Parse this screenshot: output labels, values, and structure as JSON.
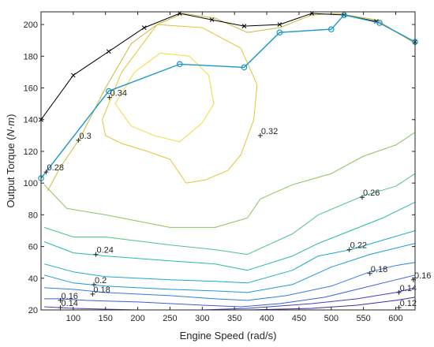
{
  "chart_data": {
    "type": "line",
    "title": "",
    "xlabel": "Engine Speed (rad/s)",
    "ylabel": "Output Torque (N·m)",
    "ylabel_parts": {
      "before": "Output Torque (",
      "unit": "N·m",
      "after": ")"
    },
    "xlim": [
      50,
      630
    ],
    "ylim": [
      20,
      208
    ],
    "grid": false,
    "xticks": [
      {
        "v": 100,
        "label": "100"
      },
      {
        "v": 150,
        "label": "150"
      },
      {
        "v": 200,
        "label": "200"
      },
      {
        "v": 250,
        "label": "250"
      },
      {
        "v": 300,
        "label": "300"
      },
      {
        "v": 350,
        "label": "350"
      },
      {
        "v": 400,
        "label": "400"
      },
      {
        "v": 450,
        "label": "450"
      },
      {
        "v": 500,
        "label": "500"
      },
      {
        "v": 550,
        "label": "550"
      },
      {
        "v": 600,
        "label": "600"
      }
    ],
    "yticks": [
      {
        "v": 20,
        "label": "20"
      },
      {
        "v": 40,
        "label": "40"
      },
      {
        "v": 60,
        "label": "60"
      },
      {
        "v": 80,
        "label": "80"
      },
      {
        "v": 100,
        "label": "100"
      },
      {
        "v": 120,
        "label": "120"
      },
      {
        "v": 140,
        "label": "140"
      },
      {
        "v": 160,
        "label": "160"
      },
      {
        "v": 180,
        "label": "180"
      },
      {
        "v": 200,
        "label": "200"
      }
    ],
    "contours": [
      {
        "level": 0.12,
        "color": "#3d2ba8",
        "points": [
          [
            370,
            20
          ],
          [
            470,
            21
          ],
          [
            540,
            23
          ],
          [
            600,
            26
          ],
          [
            630,
            28
          ]
        ]
      },
      {
        "level": 0.14,
        "color": "#4440c2",
        "points": [
          [
            55,
            22
          ],
          [
            100,
            21
          ],
          [
            200,
            20
          ],
          [
            300,
            20
          ],
          [
            370,
            21
          ]
        ]
      },
      {
        "level": 0.14,
        "color": "#4440c2",
        "points": [
          [
            370,
            21
          ],
          [
            470,
            24
          ],
          [
            540,
            27
          ],
          [
            600,
            31
          ],
          [
            630,
            34
          ]
        ]
      },
      {
        "level": 0.16,
        "color": "#3a5fd8",
        "points": [
          [
            55,
            27
          ],
          [
            80,
            27
          ],
          [
            120,
            26
          ],
          [
            200,
            25
          ],
          [
            300,
            23
          ],
          [
            360,
            22
          ],
          [
            420,
            24
          ],
          [
            490,
            28
          ],
          [
            550,
            34
          ],
          [
            600,
            39
          ],
          [
            630,
            42
          ]
        ]
      },
      {
        "level": 0.18,
        "color": "#2f7de6",
        "points": [
          [
            55,
            34
          ],
          [
            100,
            33
          ],
          [
            150,
            31
          ],
          [
            250,
            29
          ],
          [
            320,
            27
          ],
          [
            370,
            26
          ],
          [
            430,
            29
          ],
          [
            500,
            35
          ],
          [
            560,
            44
          ],
          [
            600,
            48
          ],
          [
            630,
            50
          ]
        ]
      },
      {
        "level": 0.2,
        "color": "#1c98dc",
        "points": [
          [
            55,
            42
          ],
          [
            100,
            37
          ],
          [
            150,
            35
          ],
          [
            250,
            33
          ],
          [
            320,
            32
          ],
          [
            370,
            31
          ],
          [
            440,
            36
          ],
          [
            500,
            47
          ],
          [
            560,
            55
          ],
          [
            600,
            59
          ],
          [
            630,
            62
          ]
        ]
      },
      {
        "level": 0.22,
        "color": "#18adc8",
        "points": [
          [
            55,
            49
          ],
          [
            100,
            44
          ],
          [
            150,
            41
          ],
          [
            250,
            39
          ],
          [
            320,
            38
          ],
          [
            370,
            37
          ],
          [
            440,
            45
          ],
          [
            480,
            54
          ],
          [
            530,
            58
          ],
          [
            580,
            64
          ],
          [
            630,
            70
          ]
        ]
      },
      {
        "level": 0.24,
        "color": "#25bca6",
        "points": [
          [
            55,
            63
          ],
          [
            100,
            56
          ],
          [
            150,
            54
          ],
          [
            250,
            51
          ],
          [
            320,
            49
          ],
          [
            370,
            45
          ],
          [
            440,
            54
          ],
          [
            480,
            62
          ],
          [
            530,
            70
          ],
          [
            580,
            78
          ],
          [
            630,
            88
          ]
        ]
      },
      {
        "level": 0.26,
        "color": "#4cc484",
        "points": [
          [
            55,
            72
          ],
          [
            100,
            66
          ],
          [
            150,
            66
          ],
          [
            250,
            61
          ],
          [
            320,
            58
          ],
          [
            370,
            55
          ],
          [
            440,
            68
          ],
          [
            480,
            80
          ],
          [
            550,
            92
          ],
          [
            600,
            98
          ],
          [
            630,
            106
          ]
        ]
      },
      {
        "level": 0.28,
        "color": "#8bc45c",
        "points": [
          [
            55,
            99
          ],
          [
            90,
            84
          ],
          [
            150,
            80
          ],
          [
            250,
            72
          ],
          [
            320,
            72
          ],
          [
            370,
            78
          ],
          [
            390,
            90
          ],
          [
            440,
            99
          ],
          [
            500,
            106
          ],
          [
            550,
            117
          ],
          [
            600,
            124
          ],
          [
            630,
            132
          ]
        ]
      },
      {
        "level": 0.3,
        "color": "#c9bb3a",
        "points": [
          [
            60,
            95
          ],
          [
            80,
            110
          ],
          [
            110,
            128
          ],
          [
            150,
            160
          ],
          [
            190,
            188
          ],
          [
            230,
            200
          ],
          [
            270,
            207
          ],
          [
            320,
            204
          ],
          [
            370,
            195
          ],
          [
            420,
            198
          ],
          [
            470,
            206
          ],
          [
            510,
            207
          ],
          [
            570,
            203
          ],
          [
            630,
            188
          ]
        ]
      },
      {
        "level": 0.32,
        "color": "#e6c232",
        "points": [
          [
            145,
            140
          ],
          [
            175,
            170
          ],
          [
            230,
            200
          ],
          [
            300,
            198
          ],
          [
            360,
            185
          ],
          [
            385,
            162
          ],
          [
            380,
            140
          ],
          [
            360,
            118
          ],
          [
            340,
            108
          ],
          [
            305,
            102
          ],
          [
            275,
            100
          ],
          [
            250,
            115
          ],
          [
            215,
            120
          ],
          [
            175,
            125
          ],
          [
            150,
            130
          ],
          [
            145,
            140
          ]
        ]
      },
      {
        "level": 0.34,
        "color": "#f2d93a",
        "points": [
          [
            165,
            150
          ],
          [
            195,
            170
          ],
          [
            235,
            182
          ],
          [
            280,
            180
          ],
          [
            310,
            168
          ],
          [
            318,
            150
          ],
          [
            300,
            138
          ],
          [
            265,
            126
          ],
          [
            225,
            130
          ],
          [
            190,
            136
          ],
          [
            165,
            150
          ]
        ]
      }
    ],
    "contour_labels": [
      {
        "text": "0.12",
        "x": 605,
        "y": 21
      },
      {
        "text": "0.14",
        "x": 80,
        "y": 20
      },
      {
        "text": "0.14",
        "x": 605,
        "y": 31
      },
      {
        "text": "0.16",
        "x": 80,
        "y": 26
      },
      {
        "text": "0.16",
        "x": 630,
        "y": 39
      },
      {
        "text": "0.18",
        "x": 130,
        "y": 30
      },
      {
        "text": "0.18",
        "x": 560,
        "y": 43
      },
      {
        "text": "0.2",
        "x": 132,
        "y": 36
      },
      {
        "text": "0.22",
        "x": 528,
        "y": 58
      },
      {
        "text": "0.24",
        "x": 135,
        "y": 55
      },
      {
        "text": "0.26",
        "x": 548,
        "y": 91
      },
      {
        "text": "0.28",
        "x": 58,
        "y": 107
      },
      {
        "text": "0.3",
        "x": 108,
        "y": 127
      },
      {
        "text": "0.32",
        "x": 390,
        "y": 130
      },
      {
        "text": "0.34",
        "x": 156,
        "y": 154
      }
    ],
    "series": [
      {
        "color": "#000000",
        "marker": "x",
        "x": [
          50,
          100,
          155,
          210,
          265,
          315,
          365,
          420,
          470,
          520,
          570,
          630
        ],
        "y": [
          140,
          168,
          183,
          198,
          207,
          203,
          199,
          200,
          207,
          206,
          202,
          189
        ]
      },
      {
        "color": "#1a96c8",
        "marker": "o",
        "x": [
          50,
          155,
          265,
          365,
          420,
          500,
          520,
          575,
          630
        ],
        "y": [
          103,
          158,
          175,
          173,
          195,
          197,
          206,
          201,
          189
        ]
      }
    ]
  }
}
